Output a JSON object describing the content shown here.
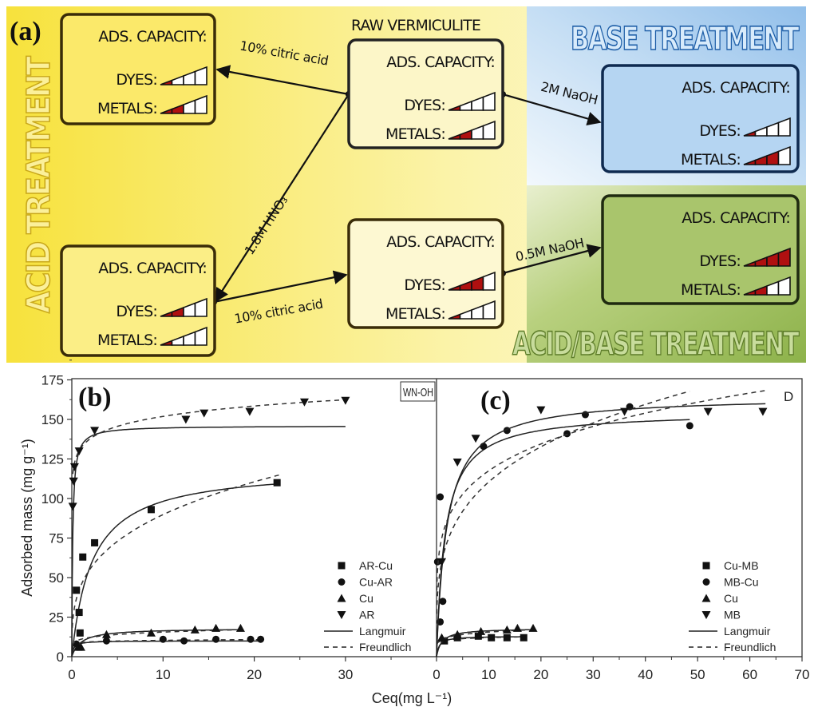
{
  "panel_a": {
    "label": "(a)",
    "region_titles": {
      "acid": "ACID TREATMENT",
      "base": "BASE TREATMENT",
      "acid_base": "ACID/BASE TREATMENT"
    },
    "raw_title": "RAW VERMICULITE",
    "box_heading": "ADS. CAPACITY:",
    "dyes_label": "DYES:",
    "metals_label": "METALS:",
    "level_max": 4,
    "boxes": [
      {
        "id": "citric-acid-treated",
        "dyes_level": 1,
        "metals_level": 2
      },
      {
        "id": "raw-vermiculite",
        "dyes_level": 1,
        "metals_level": 2
      },
      {
        "id": "base-treated",
        "dyes_level": 1,
        "metals_level": 3
      },
      {
        "id": "hno3-treated",
        "dyes_level": 2,
        "metals_level": 1
      },
      {
        "id": "hno3-citric-treated",
        "dyes_level": 3,
        "metals_level": 1
      },
      {
        "id": "acid-base-treated",
        "dyes_level": 4,
        "metals_level": 2
      }
    ],
    "arrows": [
      {
        "label": "10% citric acid"
      },
      {
        "label": "2M NaOH"
      },
      {
        "label": "1.8M HNO₃"
      },
      {
        "label": "10% citric acid"
      },
      {
        "label": "0.5M NaOH"
      }
    ],
    "colors": {
      "acid_bg": "#f8e64a",
      "base_bg": "#a8ccee",
      "acid_base_bg": "#9fbf5c",
      "capacity_fill": "#b01010"
    }
  },
  "chart_data": [
    {
      "type": "scatter",
      "panel_label": "(b)",
      "xlabel": "Ceq(mg L⁻¹)",
      "ylabel": "Adsorbed mass (mg g⁻¹)",
      "xlim": [
        0,
        40
      ],
      "ylim": [
        0,
        175
      ],
      "xticks": [
        "0",
        "10",
        "20",
        "30"
      ],
      "yticks": [
        "0",
        "25",
        "50",
        "75",
        "100",
        "125",
        "150",
        "175"
      ],
      "legend_position": "bottom-right",
      "series": [
        {
          "name": "AR-Cu",
          "marker": "square",
          "points": [
            [
              0.5,
              42
            ],
            [
              0.8,
              28
            ],
            [
              0.9,
              15
            ],
            [
              1.2,
              63
            ],
            [
              2.5,
              72
            ],
            [
              8.7,
              93
            ],
            [
              22.5,
              110
            ]
          ],
          "langmuir": {
            "qm": 120,
            "K": 0.45,
            "xmax": 22.5
          },
          "freundlich": {
            "K": 45,
            "n": 0.3,
            "xmax": 22.7
          }
        },
        {
          "name": "Cu-AR",
          "marker": "circle",
          "points": [
            [
              0.5,
              8
            ],
            [
              3.8,
              10
            ],
            [
              10,
              11
            ],
            [
              12.3,
              10
            ],
            [
              15.8,
              11
            ],
            [
              19.6,
              11
            ],
            [
              20.7,
              11
            ]
          ],
          "langmuir": {
            "qm": 10,
            "K": 5,
            "xmax": 20.7
          },
          "freundlich": {
            "K": 9,
            "n": 0.06,
            "xmax": 20.7
          }
        },
        {
          "name": "Cu",
          "marker": "triangle-up",
          "points": [
            [
              0.7,
              6
            ],
            [
              1,
              6
            ],
            [
              3.8,
              14
            ],
            [
              8.7,
              15
            ],
            [
              13.5,
              17
            ],
            [
              15.8,
              18
            ],
            [
              18.5,
              18
            ]
          ],
          "langmuir": {
            "qm": 18,
            "K": 1,
            "xmax": 18.5
          },
          "freundlich": {
            "K": 11,
            "n": 0.15,
            "xmax": 18.5
          }
        },
        {
          "name": "AR",
          "marker": "triangle-down",
          "points": [
            [
              0.1,
              95
            ],
            [
              0.2,
              111
            ],
            [
              0.3,
              120
            ],
            [
              0.8,
              130
            ],
            [
              2.5,
              143
            ],
            [
              12.5,
              150
            ],
            [
              14.5,
              154
            ],
            [
              19.5,
              155
            ],
            [
              25.5,
              161
            ],
            [
              30,
              162
            ]
          ],
          "langmuir": {
            "qm": 146,
            "K": 10,
            "xmax": 30
          },
          "freundlich": {
            "K": 132,
            "n": 0.061,
            "xmax": 30
          }
        }
      ],
      "fit_legend": {
        "langmuir": "Langmuir",
        "freundlich": "Freundlich"
      }
    },
    {
      "type": "scatter",
      "panel_label": "(c)",
      "inset_label": "WN-OH",
      "corner_label": "D",
      "xlim": [
        0,
        70
      ],
      "ylim": [
        0,
        175
      ],
      "xticks": [
        "0",
        "10",
        "20",
        "30",
        "40",
        "50",
        "60",
        "70"
      ],
      "legend_position": "bottom-right",
      "series": [
        {
          "name": "Cu-MB",
          "marker": "square",
          "points": [
            [
              1.5,
              10
            ],
            [
              4,
              12
            ],
            [
              8,
              13
            ],
            [
              10.5,
              12
            ],
            [
              13.5,
              12
            ],
            [
              16.7,
              12
            ]
          ],
          "langmuir": {
            "qm": 13,
            "K": 2,
            "xmax": 16.7
          },
          "freundlich": {
            "K": 10,
            "n": 0.08,
            "xmax": 16.7
          }
        },
        {
          "name": "MB-Cu",
          "marker": "circle",
          "points": [
            [
              0.2,
              60
            ],
            [
              0.7,
              101
            ],
            [
              1.2,
              35
            ],
            [
              0.7,
              22
            ],
            [
              9,
              133
            ],
            [
              13.5,
              143
            ],
            [
              25,
              141
            ],
            [
              28.5,
              153
            ],
            [
              37,
              158
            ],
            [
              48.5,
              146
            ]
          ],
          "langmuir": {
            "qm": 155,
            "K": 0.6,
            "xmax": 48.5
          },
          "freundlich": {
            "K": 60,
            "n": 0.265,
            "xmax": 48.5
          }
        },
        {
          "name": "Cu",
          "marker": "triangle-up",
          "points": [
            [
              1,
              12
            ],
            [
              4,
              14
            ],
            [
              8.5,
              16
            ],
            [
              13.5,
              17
            ],
            [
              15.5,
              18
            ],
            [
              18.5,
              18
            ]
          ],
          "langmuir": {
            "qm": 18,
            "K": 1,
            "xmax": 18.5
          },
          "freundlich": {
            "K": 11,
            "n": 0.15,
            "xmax": 18.5
          }
        },
        {
          "name": "MB",
          "marker": "triangle-down",
          "points": [
            [
              1,
              60
            ],
            [
              4,
              123
            ],
            [
              7.5,
              138
            ],
            [
              20,
              156
            ],
            [
              36,
              155
            ],
            [
              52,
              155
            ],
            [
              62.5,
              155
            ]
          ],
          "langmuir": {
            "qm": 165,
            "K": 0.5,
            "xmax": 63
          },
          "freundlich": {
            "K": 75,
            "n": 0.195,
            "xmax": 63
          }
        }
      ],
      "fit_legend": {
        "langmuir": "Langmuir",
        "freundlich": "Freundlich"
      }
    }
  ]
}
